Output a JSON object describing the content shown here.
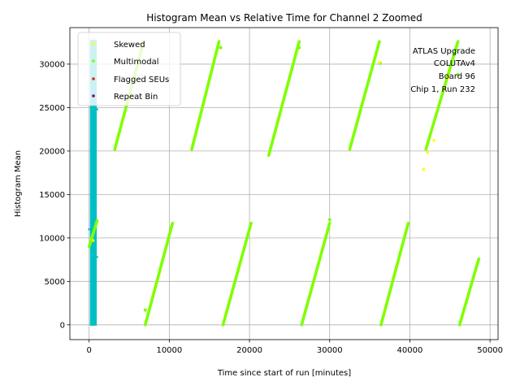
{
  "chart_data": {
    "type": "scatter",
    "title": "Histogram Mean vs Relative Time for Channel 2 Zoomed",
    "xlabel": "Time since start of run [minutes]",
    "ylabel": "Histogram Mean",
    "xlim": [
      -2400,
      51000
    ],
    "ylim": [
      -1700,
      34200
    ],
    "xticks": [
      0,
      10000,
      20000,
      30000,
      40000,
      50000
    ],
    "yticks": [
      0,
      5000,
      10000,
      15000,
      20000,
      25000,
      30000
    ],
    "grid": true,
    "legend_position": "top-left",
    "annotation": [
      "ATLAS Upgrade",
      "COLUTAv4",
      "Board 96",
      "Chip 1, Run 232"
    ],
    "colors": {
      "skewed": "#ffff00",
      "multimodal": "#7fff00",
      "flagged": "#dc2626",
      "repeat": "#800080",
      "band": "#00bfc4"
    },
    "series": [
      {
        "name": "Skewed",
        "color": "#ffff00",
        "points": [
          [
            41700,
            17900
          ],
          [
            42200,
            19800
          ],
          [
            43000,
            21200
          ],
          [
            44800,
            28500
          ],
          [
            36200,
            30200
          ],
          [
            6600,
            32300
          ],
          [
            500,
            9700
          ]
        ]
      },
      {
        "name": "Multimodal",
        "color": "#7fff00",
        "segments": [
          [
            [
              0,
              9000
            ],
            [
              1000,
              12000
            ]
          ],
          [
            [
              3200,
              20200
            ],
            [
              6800,
              32600
            ]
          ],
          [
            [
              7000,
              0
            ],
            [
              10400,
              11700
            ]
          ],
          [
            [
              12800,
              20200
            ],
            [
              16200,
              32600
            ]
          ],
          [
            [
              16700,
              0
            ],
            [
              20200,
              11700
            ]
          ],
          [
            [
              22400,
              19500
            ],
            [
              26200,
              32600
            ]
          ],
          [
            [
              26500,
              0
            ],
            [
              30000,
              11700
            ]
          ],
          [
            [
              32500,
              20200
            ],
            [
              36200,
              32600
            ]
          ],
          [
            [
              36400,
              0
            ],
            [
              39800,
              11700
            ]
          ],
          [
            [
              42000,
              20200
            ],
            [
              46000,
              32600
            ]
          ],
          [
            [
              46200,
              0
            ],
            [
              48600,
              7600
            ]
          ]
        ],
        "points": [
          [
            7000,
            1700
          ],
          [
            30000,
            12100
          ],
          [
            36300,
            30100
          ],
          [
            16400,
            31900
          ],
          [
            26200,
            31900
          ],
          [
            46000,
            28800
          ]
        ]
      },
      {
        "name": "Flagged SEUs",
        "color": "#dc2626",
        "points": []
      },
      {
        "name": "Repeat Bin",
        "color": "#800080",
        "points": []
      }
    ],
    "band": {
      "x": [
        100,
        950
      ],
      "y": [
        -100,
        32800
      ],
      "extra_points": [
        [
          0,
          11000
        ],
        [
          1000,
          7800
        ],
        [
          1000,
          24800
        ]
      ]
    }
  }
}
